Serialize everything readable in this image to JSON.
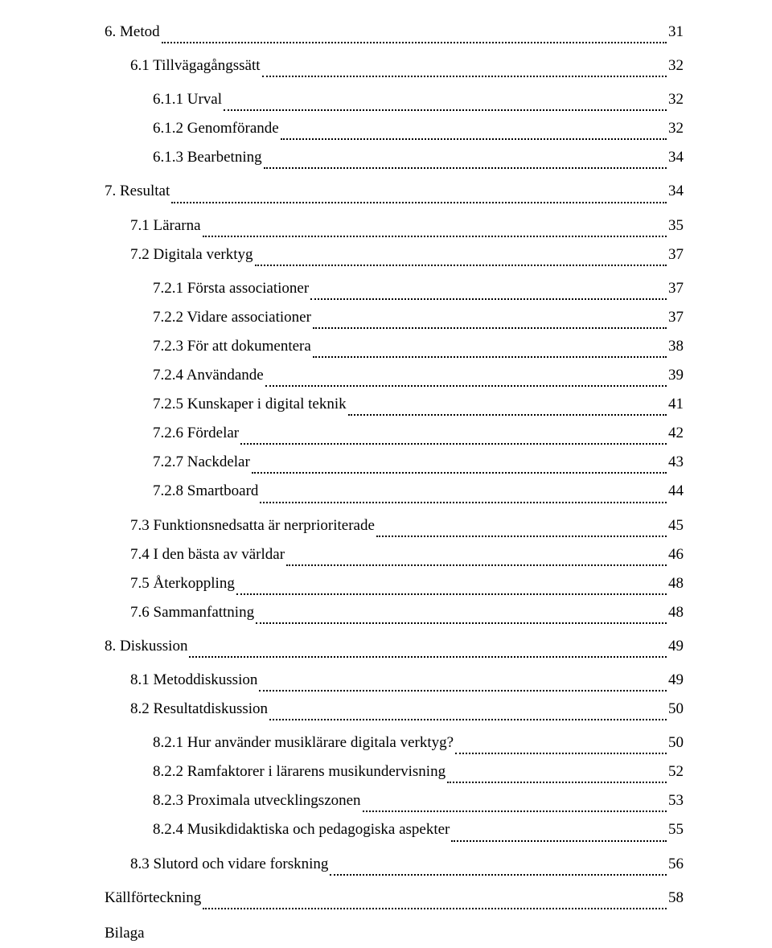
{
  "toc": [
    {
      "level": 0,
      "label": "6. Metod",
      "page": "31",
      "gapAfter": true
    },
    {
      "level": 1,
      "label": "6.1 Tillvägagångssätt",
      "page": "32",
      "gapAfter": true
    },
    {
      "level": 2,
      "label": "6.1.1 Urval",
      "page": "32"
    },
    {
      "level": 2,
      "label": "6.1.2 Genomförande",
      "page": "32"
    },
    {
      "level": 2,
      "label": "6.1.3 Bearbetning",
      "page": "34",
      "gapAfter": true
    },
    {
      "level": 0,
      "label": "7. Resultat",
      "page": "34",
      "gapAfter": true
    },
    {
      "level": 1,
      "label": "7.1 Lärarna",
      "page": "35"
    },
    {
      "level": 1,
      "label": "7.2 Digitala verktyg",
      "page": "37",
      "gapAfter": true
    },
    {
      "level": 2,
      "label": "7.2.1 Första associationer",
      "page": "37"
    },
    {
      "level": 2,
      "label": "7.2.2 Vidare associationer",
      "page": "37"
    },
    {
      "level": 2,
      "label": "7.2.3 För att dokumentera",
      "page": "38"
    },
    {
      "level": 2,
      "label": "7.2.4 Användande",
      "page": "39"
    },
    {
      "level": 2,
      "label": "7.2.5 Kunskaper i digital teknik",
      "page": "41"
    },
    {
      "level": 2,
      "label": "7.2.6 Fördelar",
      "page": "42"
    },
    {
      "level": 2,
      "label": "7.2.7 Nackdelar",
      "page": "43"
    },
    {
      "level": 2,
      "label": "7.2.8 Smartboard",
      "page": "44",
      "gapAfter": true
    },
    {
      "level": 1,
      "label": "7.3 Funktionsnedsatta är nerprioriterade",
      "page": "45"
    },
    {
      "level": 1,
      "label": "7.4 I den bästa av världar",
      "page": "46"
    },
    {
      "level": 1,
      "label": "7.5 Återkoppling",
      "page": "48"
    },
    {
      "level": 1,
      "label": "7.6 Sammanfattning",
      "page": "48",
      "gapAfter": true
    },
    {
      "level": 0,
      "label": "8. Diskussion",
      "page": "49",
      "gapAfter": true
    },
    {
      "level": 1,
      "label": "8.1 Metoddiskussion",
      "page": "49"
    },
    {
      "level": 1,
      "label": "8.2 Resultatdiskussion",
      "page": "50",
      "gapAfter": true
    },
    {
      "level": 2,
      "label": "8.2.1 Hur använder musiklärare digitala verktyg?",
      "page": "50"
    },
    {
      "level": 2,
      "label": "8.2.2 Ramfaktorer i lärarens musikundervisning",
      "page": "52"
    },
    {
      "level": 2,
      "label": "8.2.3 Proximala utvecklingszonen",
      "page": "53"
    },
    {
      "level": 2,
      "label": "8.2.4 Musikdidaktiska och pedagogiska aspekter",
      "page": "55",
      "gapAfter": true
    },
    {
      "level": 1,
      "label": "8.3 Slutord och vidare forskning",
      "page": "56",
      "gapAfter": true
    },
    {
      "level": 0,
      "label": "Källförteckning",
      "page": "58"
    }
  ],
  "endword": "Bilaga"
}
